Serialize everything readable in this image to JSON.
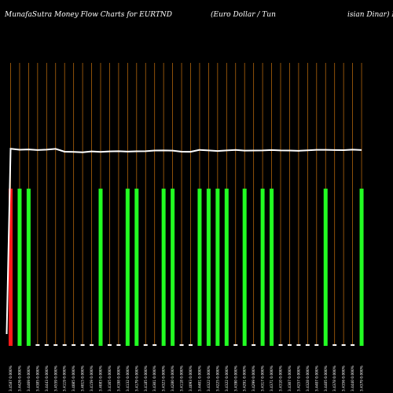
{
  "title": {
    "left": "MunafaSutra  Money Flow  Charts for EURTND",
    "middle": "(Euro  Dollar / Tun",
    "right": "isian  Dinar) Mu"
  },
  "colors": {
    "background": "#000000",
    "gridline": "#b0640c",
    "up_bar": "#22ff22",
    "down_bar": "#ff1a1a",
    "flat_bar": "#ffffff",
    "price_line": "#ffffff"
  },
  "chart_data": {
    "type": "bar",
    "title": "MunafaSutra  Money Flow  Charts for EURTND (Euro  Dollar / Tunisian  Dinar) Mu",
    "grid": true,
    "categories": [
      "3.4587 0.000%",
      "3.4426 0.000%",
      "3.4469 0.000%",
      "3.4385 0.000%",
      "3.4443 0.000%",
      "3.4559 0.000%",
      "3.4119 0.000%",
      "3.4085 0.000%",
      "3.4015 0.000%",
      "3.4159 0.000%",
      "3.4083 0.000%",
      "3.4165 0.000%",
      "3.4198 0.000%",
      "3.4132 0.000%",
      "3.4179 0.000%",
      "3.4185 0.000%",
      "3.4301 0.000%",
      "3.4323 0.000%",
      "3.4280 0.000%",
      "3.4118 0.000%",
      "3.4093 0.000%",
      "3.4401 0.000%",
      "3.4322 0.000%",
      "3.4225 0.000%",
      "3.4322 0.000%",
      "3.4390 0.000%",
      "3.4291 0.000%",
      "3.4299 0.000%",
      "3.4317 0.000%",
      "3.4371 0.000%",
      "3.4310 0.000%",
      "3.4307 0.000%",
      "3.4257 0.000%",
      "3.4328 0.000%",
      "3.4407 0.000%",
      "3.4405 0.000%",
      "3.4378 0.000%",
      "3.4356 0.000%",
      "3.4440 0.000%",
      "3.4379 0.000%"
    ],
    "series": [
      {
        "values": [
          100,
          100,
          100,
          1,
          1,
          1,
          1,
          1,
          1,
          1,
          100,
          1,
          1,
          100,
          100,
          1,
          1,
          100,
          100,
          1,
          1,
          100,
          100,
          100,
          100,
          1,
          100,
          1,
          100,
          100,
          1,
          1,
          1,
          1,
          1,
          100,
          1,
          1,
          1,
          100
        ]
      }
    ],
    "bar_colors": [
      "down",
      "up",
      "up",
      "flat",
      "flat",
      "flat",
      "flat",
      "flat",
      "flat",
      "flat",
      "up",
      "flat",
      "flat",
      "up",
      "up",
      "flat",
      "flat",
      "up",
      "up",
      "flat",
      "flat",
      "up",
      "up",
      "up",
      "up",
      "flat",
      "up",
      "flat",
      "up",
      "up",
      "flat",
      "flat",
      "flat",
      "flat",
      "flat",
      "up",
      "flat",
      "flat",
      "flat",
      "up"
    ],
    "price_line": [
      3.4587,
      3.4426,
      3.4469,
      3.4385,
      3.4443,
      3.4559,
      3.4119,
      3.4085,
      3.4015,
      3.4159,
      3.4083,
      3.4165,
      3.4198,
      3.4132,
      3.4179,
      3.4185,
      3.4301,
      3.4323,
      3.428,
      3.4118,
      3.4093,
      3.4401,
      3.4322,
      3.4225,
      3.4322,
      3.439,
      3.4291,
      3.4299,
      3.4317,
      3.4371,
      3.431,
      3.4307,
      3.4257,
      3.4328,
      3.4407,
      3.4405,
      3.4378,
      3.4356,
      3.444,
      3.4379
    ],
    "price_line_start": 3.0
  }
}
